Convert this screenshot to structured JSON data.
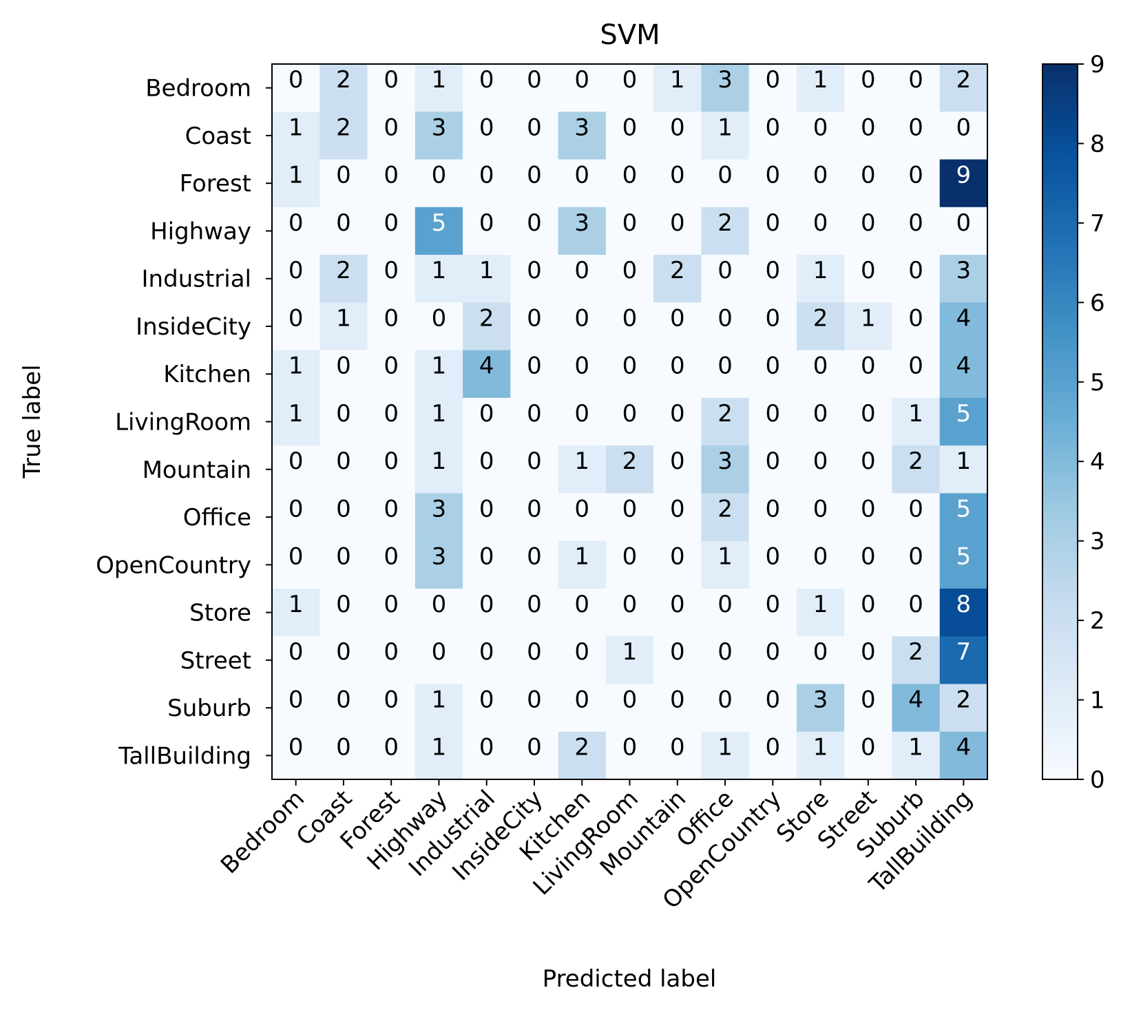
{
  "chart_data": {
    "type": "heatmap",
    "title": "SVM",
    "xlabel": "Predicted label",
    "ylabel": "True label",
    "x_categories": [
      "Bedroom",
      "Coast",
      "Forest",
      "Highway",
      "Industrial",
      "InsideCity",
      "Kitchen",
      "LivingRoom",
      "Mountain",
      "Office",
      "OpenCountry",
      "Store",
      "Street",
      "Suburb",
      "TallBuilding"
    ],
    "y_categories": [
      "Bedroom",
      "Coast",
      "Forest",
      "Highway",
      "Industrial",
      "InsideCity",
      "Kitchen",
      "LivingRoom",
      "Mountain",
      "Office",
      "OpenCountry",
      "Store",
      "Street",
      "Suburb",
      "TallBuilding"
    ],
    "values": [
      [
        0,
        2,
        0,
        1,
        0,
        0,
        0,
        0,
        1,
        3,
        0,
        1,
        0,
        0,
        2
      ],
      [
        1,
        2,
        0,
        3,
        0,
        0,
        3,
        0,
        0,
        1,
        0,
        0,
        0,
        0,
        0
      ],
      [
        1,
        0,
        0,
        0,
        0,
        0,
        0,
        0,
        0,
        0,
        0,
        0,
        0,
        0,
        9
      ],
      [
        0,
        0,
        0,
        5,
        0,
        0,
        3,
        0,
        0,
        2,
        0,
        0,
        0,
        0,
        0
      ],
      [
        0,
        2,
        0,
        1,
        1,
        0,
        0,
        0,
        2,
        0,
        0,
        1,
        0,
        0,
        3
      ],
      [
        0,
        1,
        0,
        0,
        2,
        0,
        0,
        0,
        0,
        0,
        0,
        2,
        1,
        0,
        4
      ],
      [
        1,
        0,
        0,
        1,
        4,
        0,
        0,
        0,
        0,
        0,
        0,
        0,
        0,
        0,
        4
      ],
      [
        1,
        0,
        0,
        1,
        0,
        0,
        0,
        0,
        0,
        2,
        0,
        0,
        0,
        1,
        5
      ],
      [
        0,
        0,
        0,
        1,
        0,
        0,
        1,
        2,
        0,
        3,
        0,
        0,
        0,
        2,
        1
      ],
      [
        0,
        0,
        0,
        3,
        0,
        0,
        0,
        0,
        0,
        2,
        0,
        0,
        0,
        0,
        5
      ],
      [
        0,
        0,
        0,
        3,
        0,
        0,
        1,
        0,
        0,
        1,
        0,
        0,
        0,
        0,
        5
      ],
      [
        1,
        0,
        0,
        0,
        0,
        0,
        0,
        0,
        0,
        0,
        0,
        1,
        0,
        0,
        8
      ],
      [
        0,
        0,
        0,
        0,
        0,
        0,
        0,
        1,
        0,
        0,
        0,
        0,
        0,
        2,
        7
      ],
      [
        0,
        0,
        0,
        1,
        0,
        0,
        0,
        0,
        0,
        0,
        0,
        3,
        0,
        4,
        2
      ],
      [
        0,
        0,
        0,
        1,
        0,
        0,
        2,
        0,
        0,
        1,
        0,
        1,
        0,
        1,
        4
      ]
    ],
    "colorbar": {
      "range": [
        0,
        9
      ],
      "ticks": [
        0,
        1,
        2,
        3,
        4,
        5,
        6,
        7,
        8,
        9
      ],
      "colormap": "Blues"
    },
    "colors": {
      "low": "#f7fbff",
      "high": "#08306b",
      "text_dark": "#000000",
      "text_light": "#ffffff"
    }
  }
}
